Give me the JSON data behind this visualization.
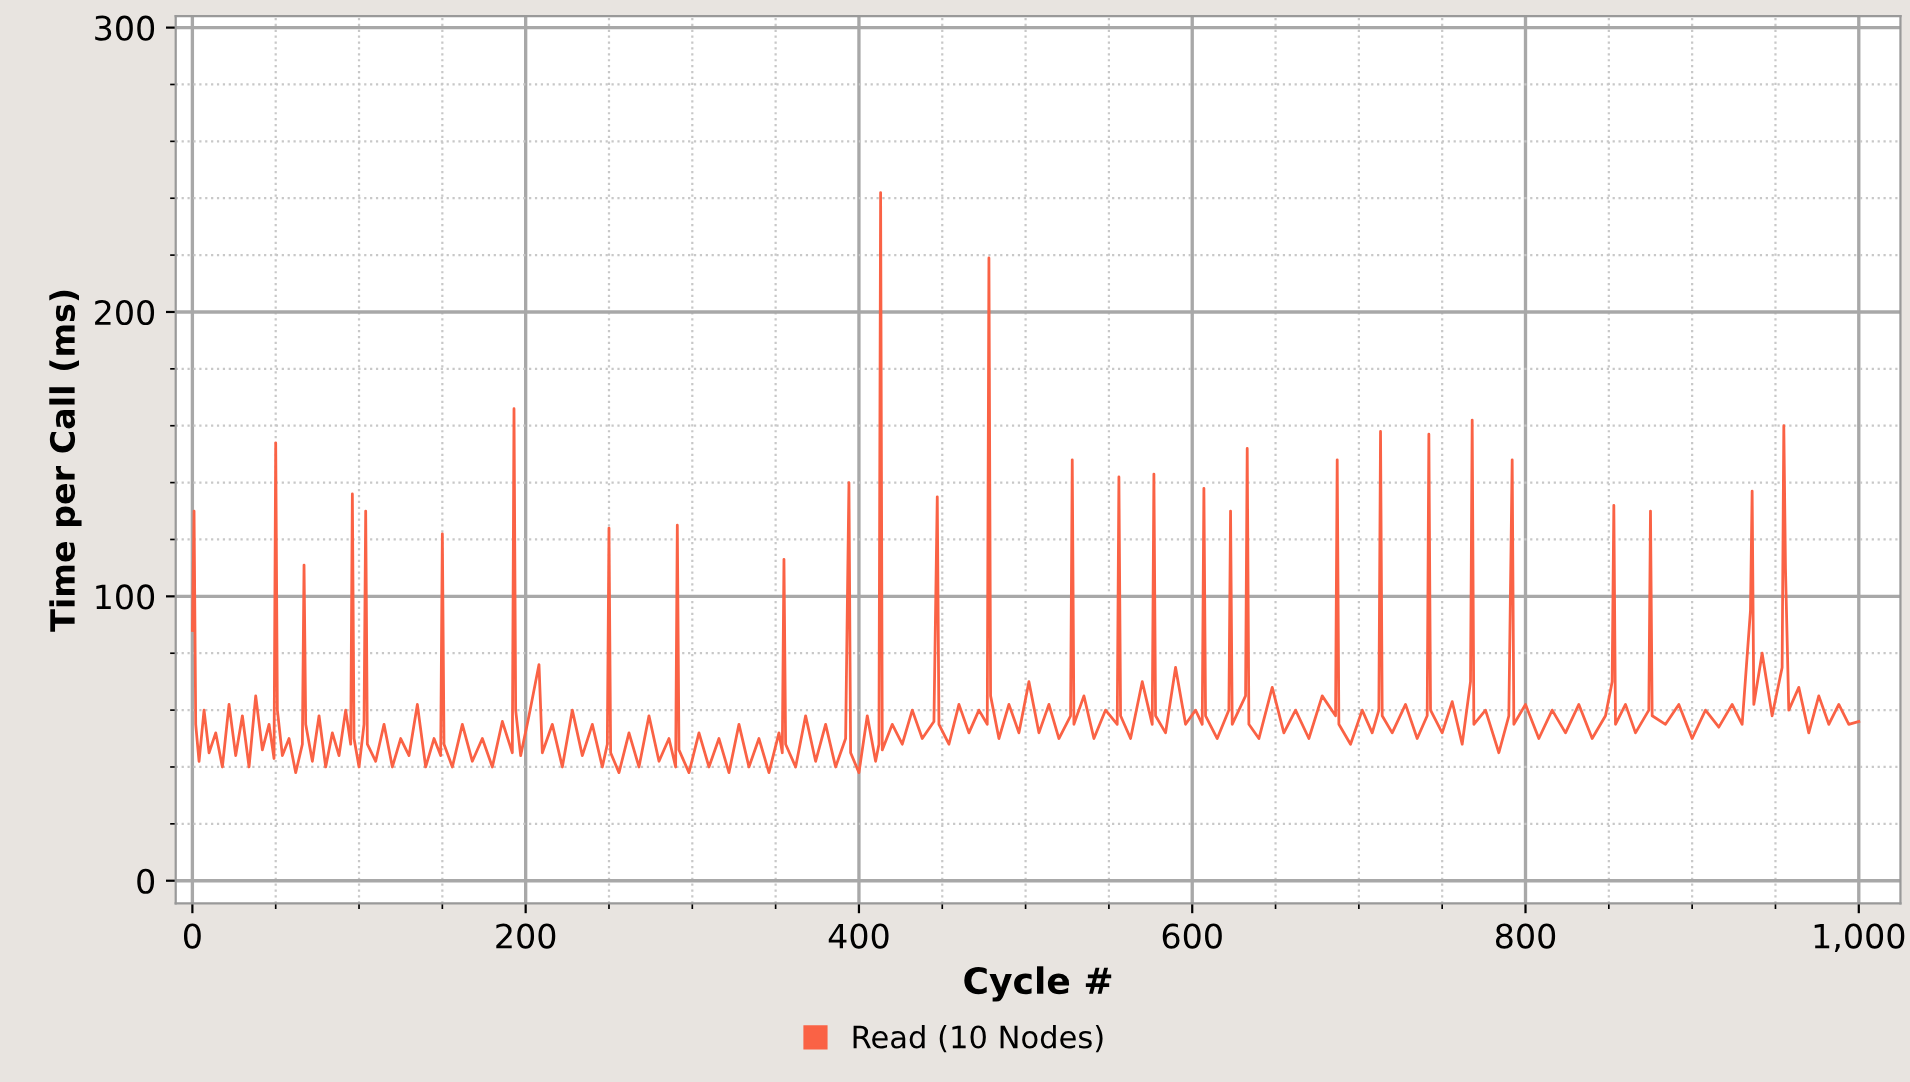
{
  "chart_data": {
    "type": "line",
    "xlabel": "Cycle #",
    "ylabel": "Time per Call (ms)",
    "xlim": [
      -10,
      1025
    ],
    "ylim": [
      -8,
      304
    ],
    "xticks": [
      0,
      200,
      400,
      600,
      800,
      {
        "value": 1000,
        "label": "1,000"
      }
    ],
    "yticks": [
      0,
      100,
      200,
      300
    ],
    "grid": true,
    "legend": "bottom",
    "series": [
      {
        "name": "Read (10 Nodes)",
        "color": "#fa6245",
        "x": [
          0,
          1,
          2,
          4,
          7,
          10,
          14,
          18,
          22,
          26,
          30,
          34,
          38,
          42,
          46,
          49,
          50,
          51,
          54,
          58,
          62,
          66,
          67,
          68,
          72,
          76,
          80,
          84,
          88,
          92,
          95,
          96,
          97,
          100,
          103,
          104,
          105,
          110,
          115,
          120,
          125,
          130,
          135,
          140,
          145,
          149,
          150,
          151,
          156,
          162,
          168,
          174,
          180,
          186,
          192,
          193,
          194,
          197,
          202,
          208,
          210,
          216,
          222,
          228,
          234,
          240,
          246,
          249,
          250,
          251,
          256,
          262,
          268,
          274,
          280,
          286,
          290,
          291,
          292,
          298,
          304,
          310,
          316,
          322,
          328,
          334,
          340,
          346,
          352,
          354,
          355,
          356,
          362,
          368,
          374,
          380,
          386,
          392,
          394,
          395,
          400,
          405,
          410,
          412,
          413,
          414,
          420,
          426,
          432,
          438,
          445,
          447,
          448,
          454,
          460,
          466,
          472,
          477,
          478,
          479,
          484,
          490,
          496,
          502,
          508,
          514,
          520,
          527,
          528,
          529,
          535,
          541,
          548,
          555,
          556,
          557,
          563,
          570,
          576,
          577,
          578,
          584,
          590,
          596,
          602,
          606,
          607,
          608,
          615,
          622,
          623,
          624,
          632,
          633,
          634,
          640,
          648,
          655,
          662,
          670,
          678,
          686,
          687,
          688,
          695,
          702,
          708,
          712,
          713,
          714,
          720,
          728,
          735,
          741,
          742,
          743,
          750,
          756,
          762,
          767,
          768,
          769,
          776,
          784,
          790,
          792,
          793,
          800,
          808,
          816,
          824,
          832,
          840,
          848,
          852,
          853,
          854,
          860,
          866,
          874,
          875,
          876,
          884,
          892,
          900,
          908,
          916,
          924,
          930,
          935,
          936,
          937,
          942,
          948,
          954,
          955,
          956,
          958,
          964,
          970,
          976,
          982,
          988,
          994,
          1000
        ],
        "values": [
          88,
          130,
          55,
          42,
          60,
          45,
          52,
          40,
          62,
          44,
          58,
          40,
          65,
          46,
          55,
          43,
          154,
          60,
          44,
          50,
          38,
          48,
          111,
          55,
          42,
          58,
          40,
          52,
          44,
          60,
          48,
          136,
          50,
          40,
          55,
          130,
          48,
          42,
          55,
          40,
          50,
          44,
          62,
          40,
          50,
          44,
          122,
          48,
          40,
          55,
          42,
          50,
          40,
          56,
          45,
          166,
          60,
          44,
          58,
          76,
          45,
          55,
          40,
          60,
          44,
          55,
          40,
          48,
          124,
          45,
          38,
          52,
          40,
          58,
          42,
          50,
          40,
          125,
          46,
          38,
          52,
          40,
          50,
          38,
          55,
          40,
          50,
          38,
          52,
          45,
          113,
          48,
          40,
          58,
          42,
          55,
          40,
          50,
          140,
          45,
          38,
          58,
          42,
          48,
          242,
          46,
          55,
          48,
          60,
          50,
          56,
          135,
          55,
          48,
          62,
          52,
          60,
          55,
          219,
          65,
          50,
          62,
          52,
          70,
          52,
          62,
          50,
          58,
          148,
          55,
          65,
          50,
          60,
          55,
          142,
          58,
          50,
          70,
          55,
          143,
          58,
          52,
          75,
          55,
          60,
          55,
          138,
          58,
          50,
          60,
          130,
          55,
          65,
          152,
          55,
          50,
          68,
          52,
          60,
          50,
          65,
          58,
          148,
          55,
          48,
          60,
          52,
          60,
          158,
          58,
          52,
          62,
          50,
          58,
          157,
          60,
          52,
          63,
          48,
          70,
          162,
          55,
          60,
          45,
          58,
          148,
          55,
          62,
          50,
          60,
          52,
          62,
          50,
          58,
          70,
          132,
          55,
          62,
          52,
          60,
          130,
          58,
          55,
          62,
          50,
          60,
          54,
          62,
          55,
          95,
          137,
          62,
          80,
          58,
          75,
          160,
          110,
          60,
          68,
          52,
          65,
          55,
          62,
          55,
          56
        ]
      }
    ]
  }
}
